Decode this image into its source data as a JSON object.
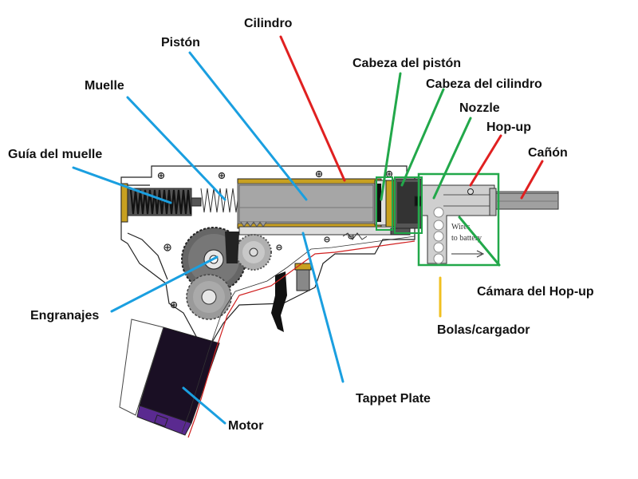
{
  "labels": {
    "cilindro": "Cilindro",
    "piston": "Pistón",
    "cabeza_piston": "Cabeza del pistón",
    "cabeza_cilindro": "Cabeza del cilindro",
    "muelle": "Muelle",
    "nozzle": "Nozzle",
    "hop_up": "Hop-up",
    "canon": "Cañón",
    "guia_muelle": "Guía del muelle",
    "engranajes": "Engranajes",
    "camara_hop_up": "Cámara del Hop-up",
    "bolas_cargador": "Bolas/cargador",
    "tappet_plate": "Tappet Plate",
    "motor": "Motor"
  },
  "hopup_inner_text": [
    "Wires",
    "to battery"
  ],
  "colors": {
    "leader_blue": "#1a9fe0",
    "leader_red": "#e02020",
    "leader_green": "#22a84a",
    "leader_yellow": "#f0c020",
    "metal_gray": "#a0a0a0",
    "brass": "#c8a020",
    "motor_dark": "#1a0f24",
    "motor_purple": "#5a2a90",
    "wire_red": "#d02020"
  }
}
